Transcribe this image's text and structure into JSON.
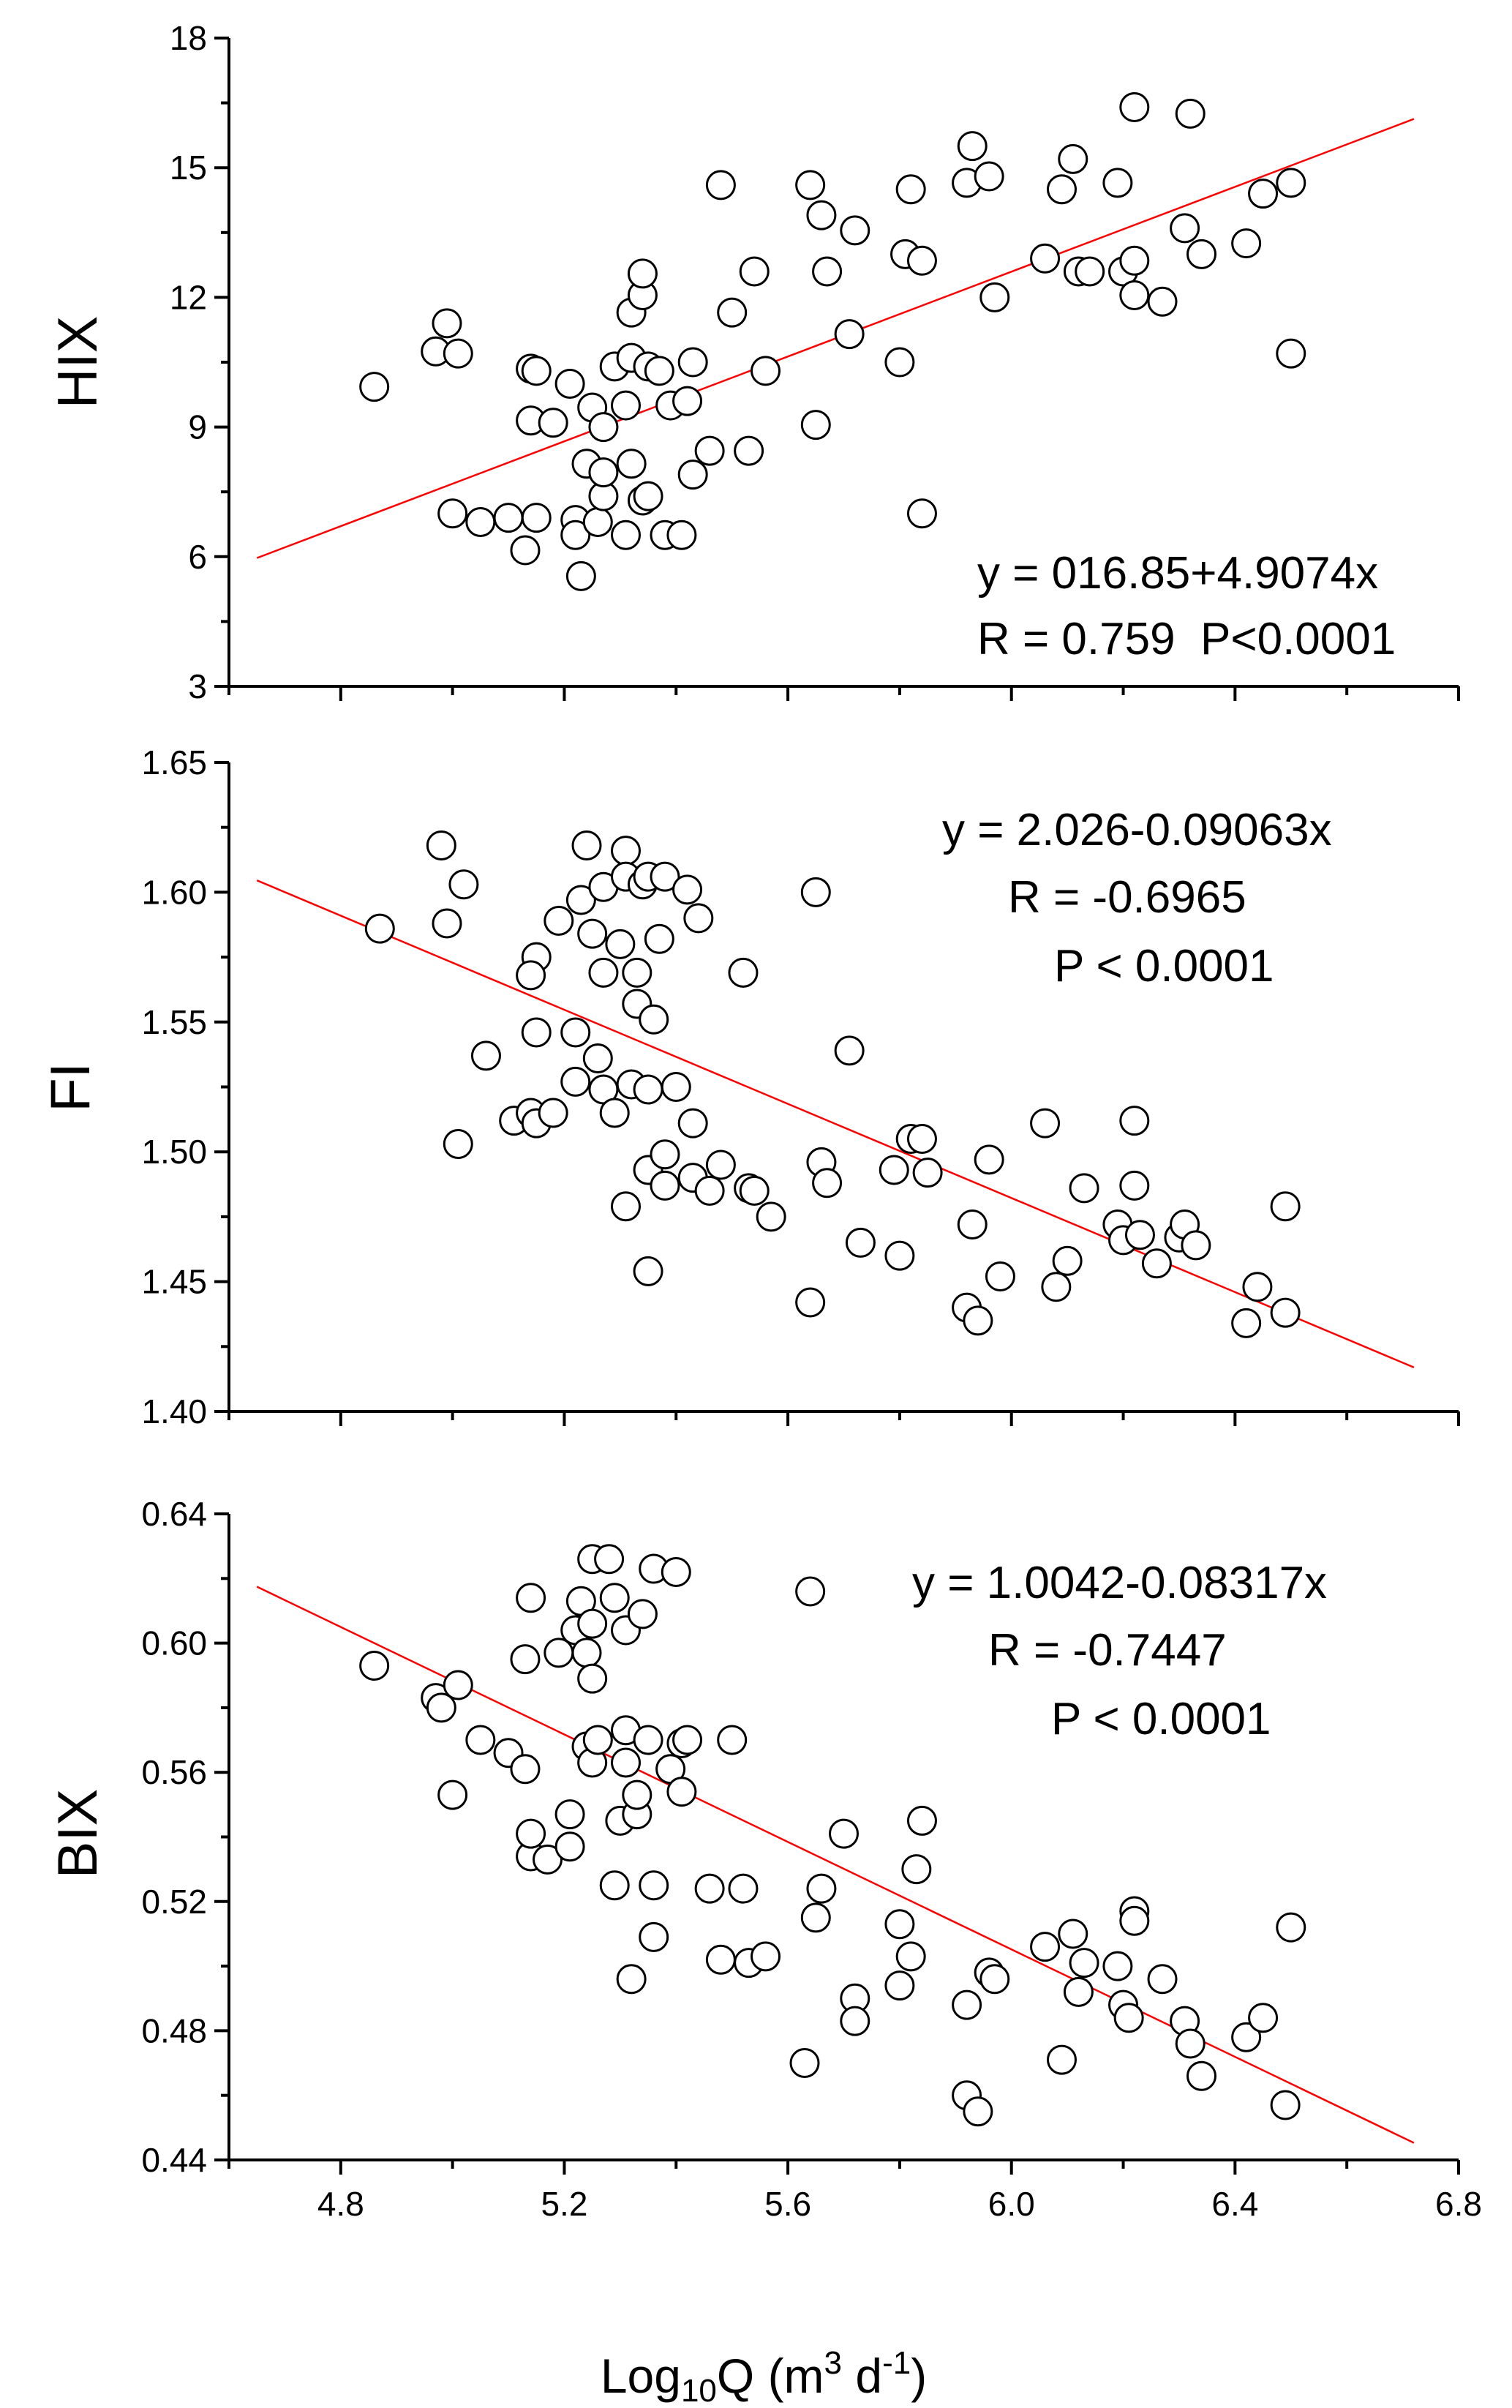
{
  "x_axis": {
    "label_main": "Log",
    "label_sub": "10",
    "label_rest": "Q (m",
    "label_sup1": "3",
    "label_mid": " d",
    "label_sup2": "-1",
    "label_end": ")",
    "range": [
      4.6,
      6.8
    ],
    "tick_labels": [
      "4.8",
      "5.2",
      "5.6",
      "6.0",
      "6.4",
      "6.8"
    ]
  },
  "colors": {
    "fit_line": "#ff0000",
    "marker_fill": "#ffffff",
    "marker_stroke": "#000000"
  },
  "chart_data": [
    {
      "type": "scatter",
      "ylabel": "HIX",
      "ylim": [
        3,
        18
      ],
      "yticks": [
        "3",
        "6",
        "9",
        "12",
        "15",
        "18"
      ],
      "equation": "y = 016.85+4.9074x",
      "stats": [
        "R = 0.759  P<0.0001"
      ],
      "fit": {
        "intercept": -16.85,
        "slope": 4.9074,
        "x_range": [
          4.65,
          6.72
        ]
      },
      "points": [
        [
          4.86,
          9.93
        ],
        [
          4.99,
          11.4
        ],
        [
          4.97,
          10.75
        ],
        [
          5.01,
          10.7
        ],
        [
          5.0,
          7.0
        ],
        [
          5.05,
          6.8
        ],
        [
          5.1,
          6.9
        ],
        [
          5.13,
          6.15
        ],
        [
          5.15,
          6.9
        ],
        [
          5.14,
          10.35
        ],
        [
          5.15,
          10.3
        ],
        [
          5.14,
          9.15
        ],
        [
          5.18,
          9.1
        ],
        [
          5.21,
          10.0
        ],
        [
          5.22,
          6.85
        ],
        [
          5.22,
          6.5
        ],
        [
          5.23,
          5.55
        ],
        [
          5.24,
          8.15
        ],
        [
          5.25,
          9.45
        ],
        [
          5.26,
          6.8
        ],
        [
          5.27,
          7.4
        ],
        [
          5.27,
          7.95
        ],
        [
          5.27,
          9.0
        ],
        [
          5.29,
          10.4
        ],
        [
          5.31,
          6.5
        ],
        [
          5.31,
          9.5
        ],
        [
          5.32,
          11.65
        ],
        [
          5.32,
          8.15
        ],
        [
          5.32,
          10.6
        ],
        [
          5.34,
          12.05
        ],
        [
          5.34,
          12.55
        ],
        [
          5.34,
          7.3
        ],
        [
          5.35,
          7.4
        ],
        [
          5.35,
          10.4
        ],
        [
          5.38,
          6.5
        ],
        [
          5.37,
          10.3
        ],
        [
          5.39,
          9.5
        ],
        [
          5.41,
          6.5
        ],
        [
          5.42,
          9.6
        ],
        [
          5.43,
          7.9
        ],
        [
          5.43,
          10.5
        ],
        [
          5.46,
          8.45
        ],
        [
          5.48,
          14.6
        ],
        [
          5.5,
          11.65
        ],
        [
          5.53,
          8.45
        ],
        [
          5.54,
          12.6
        ],
        [
          5.56,
          10.3
        ],
        [
          5.64,
          14.6
        ],
        [
          5.65,
          9.05
        ],
        [
          5.66,
          13.9
        ],
        [
          5.67,
          12.6
        ],
        [
          5.71,
          11.15
        ],
        [
          5.72,
          13.55
        ],
        [
          5.8,
          10.5
        ],
        [
          5.81,
          13.0
        ],
        [
          5.82,
          14.5
        ],
        [
          5.84,
          12.85
        ],
        [
          5.84,
          7.0
        ],
        [
          5.93,
          15.5
        ],
        [
          5.92,
          14.65
        ],
        [
          5.96,
          14.8
        ],
        [
          5.97,
          12.0
        ],
        [
          6.06,
          12.9
        ],
        [
          6.09,
          14.5
        ],
        [
          6.11,
          15.2
        ],
        [
          6.12,
          12.6
        ],
        [
          6.14,
          12.6
        ],
        [
          6.19,
          14.65
        ],
        [
          6.2,
          12.6
        ],
        [
          6.22,
          16.4
        ],
        [
          6.22,
          12.85
        ],
        [
          6.22,
          12.05
        ],
        [
          6.27,
          11.9
        ],
        [
          6.32,
          16.25
        ],
        [
          6.31,
          13.6
        ],
        [
          6.34,
          13.0
        ],
        [
          6.42,
          13.25
        ],
        [
          6.45,
          14.4
        ],
        [
          6.5,
          14.65
        ],
        [
          6.5,
          10.7
        ]
      ]
    },
    {
      "type": "scatter",
      "ylabel": "FI",
      "ylim": [
        1.4,
        1.65
      ],
      "yticks": [
        "1.40",
        "1.45",
        "1.50",
        "1.55",
        "1.60",
        "1.65"
      ],
      "equation": "y = 2.026-0.09063x",
      "stats": [
        "R = -0.6965",
        "P < 0.0001"
      ],
      "fit": {
        "intercept": 2.026,
        "slope": -0.09063,
        "x_range": [
          4.65,
          6.72
        ]
      },
      "points": [
        [
          4.87,
          1.586
        ],
        [
          4.98,
          1.618
        ],
        [
          5.02,
          1.603
        ],
        [
          4.99,
          1.588
        ],
        [
          5.01,
          1.503
        ],
        [
          5.06,
          1.537
        ],
        [
          5.11,
          1.512
        ],
        [
          5.14,
          1.515
        ],
        [
          5.15,
          1.511
        ],
        [
          5.15,
          1.575
        ],
        [
          5.14,
          1.568
        ],
        [
          5.15,
          1.546
        ],
        [
          5.18,
          1.515
        ],
        [
          5.19,
          1.589
        ],
        [
          5.22,
          1.546
        ],
        [
          5.22,
          1.527
        ],
        [
          5.24,
          1.618
        ],
        [
          5.23,
          1.597
        ],
        [
          5.25,
          1.584
        ],
        [
          5.26,
          1.536
        ],
        [
          5.27,
          1.569
        ],
        [
          5.27,
          1.602
        ],
        [
          5.27,
          1.524
        ],
        [
          5.29,
          1.515
        ],
        [
          5.3,
          1.58
        ],
        [
          5.31,
          1.616
        ],
        [
          5.31,
          1.606
        ],
        [
          5.31,
          1.479
        ],
        [
          5.32,
          1.526
        ],
        [
          5.33,
          1.569
        ],
        [
          5.33,
          1.557
        ],
        [
          5.34,
          1.603
        ],
        [
          5.35,
          1.454
        ],
        [
          5.35,
          1.493
        ],
        [
          5.35,
          1.606
        ],
        [
          5.35,
          1.524
        ],
        [
          5.36,
          1.551
        ],
        [
          5.37,
          1.582
        ],
        [
          5.38,
          1.606
        ],
        [
          5.38,
          1.499
        ],
        [
          5.38,
          1.487
        ],
        [
          5.4,
          1.525
        ],
        [
          5.42,
          1.601
        ],
        [
          5.43,
          1.511
        ],
        [
          5.43,
          1.49
        ],
        [
          5.44,
          1.59
        ],
        [
          5.46,
          1.485
        ],
        [
          5.48,
          1.495
        ],
        [
          5.52,
          1.569
        ],
        [
          5.53,
          1.486
        ],
        [
          5.54,
          1.485
        ],
        [
          5.57,
          1.475
        ],
        [
          5.64,
          1.442
        ],
        [
          5.65,
          1.6
        ],
        [
          5.66,
          1.496
        ],
        [
          5.67,
          1.488
        ],
        [
          5.71,
          1.539
        ],
        [
          5.73,
          1.465
        ],
        [
          5.8,
          1.46
        ],
        [
          5.79,
          1.493
        ],
        [
          5.82,
          1.505
        ],
        [
          5.84,
          1.505
        ],
        [
          5.85,
          1.492
        ],
        [
          5.93,
          1.472
        ],
        [
          5.92,
          1.44
        ],
        [
          5.94,
          1.435
        ],
        [
          5.96,
          1.497
        ],
        [
          5.98,
          1.452
        ],
        [
          6.06,
          1.511
        ],
        [
          6.08,
          1.448
        ],
        [
          6.1,
          1.458
        ],
        [
          6.13,
          1.486
        ],
        [
          6.19,
          1.472
        ],
        [
          6.2,
          1.466
        ],
        [
          6.22,
          1.512
        ],
        [
          6.22,
          1.487
        ],
        [
          6.23,
          1.468
        ],
        [
          6.26,
          1.457
        ],
        [
          6.3,
          1.467
        ],
        [
          6.31,
          1.472
        ],
        [
          6.33,
          1.464
        ],
        [
          6.42,
          1.434
        ],
        [
          6.44,
          1.448
        ],
        [
          6.49,
          1.438
        ],
        [
          6.49,
          1.479
        ]
      ]
    },
    {
      "type": "scatter",
      "ylabel": "BIX",
      "ylim": [
        0.44,
        0.64
      ],
      "yticks": [
        "0.44",
        "0.48",
        "0.52",
        "0.56",
        "0.60",
        "0.64"
      ],
      "equation": "y = 1.0042-0.08317x",
      "stats": [
        "R = -0.7447",
        "P < 0.0001"
      ],
      "fit": {
        "intercept": 1.0042,
        "slope": -0.08317,
        "x_range": [
          4.65,
          6.72
        ]
      },
      "points": [
        [
          4.86,
          0.593
        ],
        [
          4.97,
          0.583
        ],
        [
          4.98,
          0.58
        ],
        [
          5.01,
          0.587
        ],
        [
          5.0,
          0.553
        ],
        [
          5.05,
          0.57
        ],
        [
          5.1,
          0.566
        ],
        [
          5.13,
          0.561
        ],
        [
          5.13,
          0.595
        ],
        [
          5.14,
          0.534
        ],
        [
          5.14,
          0.541
        ],
        [
          5.14,
          0.614
        ],
        [
          5.17,
          0.533
        ],
        [
          5.19,
          0.597
        ],
        [
          5.21,
          0.547
        ],
        [
          5.21,
          0.537
        ],
        [
          5.22,
          0.604
        ],
        [
          5.23,
          0.613
        ],
        [
          5.24,
          0.597
        ],
        [
          5.24,
          0.568
        ],
        [
          5.25,
          0.626
        ],
        [
          5.25,
          0.606
        ],
        [
          5.25,
          0.589
        ],
        [
          5.25,
          0.563
        ],
        [
          5.26,
          0.57
        ],
        [
          5.28,
          0.626
        ],
        [
          5.29,
          0.614
        ],
        [
          5.29,
          0.525
        ],
        [
          5.3,
          0.545
        ],
        [
          5.31,
          0.604
        ],
        [
          5.31,
          0.573
        ],
        [
          5.31,
          0.563
        ],
        [
          5.32,
          0.496
        ],
        [
          5.33,
          0.547
        ],
        [
          5.33,
          0.553
        ],
        [
          5.34,
          0.609
        ],
        [
          5.35,
          0.57
        ],
        [
          5.36,
          0.623
        ],
        [
          5.36,
          0.525
        ],
        [
          5.36,
          0.509
        ],
        [
          5.39,
          0.561
        ],
        [
          5.4,
          0.622
        ],
        [
          5.41,
          0.569
        ],
        [
          5.41,
          0.554
        ],
        [
          5.42,
          0.57
        ],
        [
          5.46,
          0.524
        ],
        [
          5.48,
          0.502
        ],
        [
          5.5,
          0.57
        ],
        [
          5.52,
          0.524
        ],
        [
          5.53,
          0.501
        ],
        [
          5.56,
          0.503
        ],
        [
          5.63,
          0.47
        ],
        [
          5.64,
          0.616
        ],
        [
          5.65,
          0.515
        ],
        [
          5.66,
          0.524
        ],
        [
          5.7,
          0.541
        ],
        [
          5.72,
          0.49
        ],
        [
          5.72,
          0.483
        ],
        [
          5.8,
          0.513
        ],
        [
          5.8,
          0.494
        ],
        [
          5.82,
          0.503
        ],
        [
          5.83,
          0.53
        ],
        [
          5.84,
          0.545
        ],
        [
          5.92,
          0.488
        ],
        [
          5.92,
          0.46
        ],
        [
          5.94,
          0.455
        ],
        [
          5.96,
          0.498
        ],
        [
          5.97,
          0.496
        ],
        [
          6.06,
          0.506
        ],
        [
          6.09,
          0.471
        ],
        [
          6.11,
          0.51
        ],
        [
          6.12,
          0.492
        ],
        [
          6.13,
          0.501
        ],
        [
          6.19,
          0.5
        ],
        [
          6.2,
          0.488
        ],
        [
          6.22,
          0.517
        ],
        [
          6.22,
          0.514
        ],
        [
          6.21,
          0.484
        ],
        [
          6.27,
          0.496
        ],
        [
          6.31,
          0.483
        ],
        [
          6.32,
          0.476
        ],
        [
          6.34,
          0.466
        ],
        [
          6.42,
          0.478
        ],
        [
          6.45,
          0.484
        ],
        [
          6.49,
          0.457
        ],
        [
          6.5,
          0.512
        ]
      ]
    }
  ]
}
